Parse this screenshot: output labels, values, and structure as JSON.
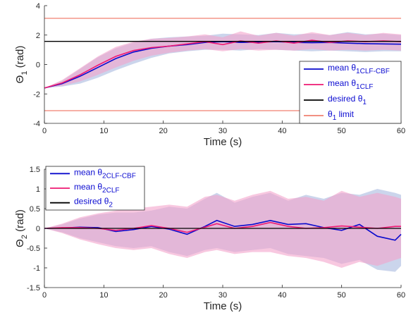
{
  "colors": {
    "clf_cbf": "#0a0acd",
    "clf": "#ee1a73",
    "desired": "#000000",
    "limit": "#f08070",
    "band_clf_cbf": "#b9c7e6",
    "band_clf": "#f4a3cc",
    "legend_text": "#0b0bd1"
  },
  "chart_data": [
    {
      "type": "line",
      "xlabel": "Time (s)",
      "ylabel_main": "Θ",
      "ylabel_sub": "1",
      "ylabel_unit": " (rad)",
      "xlim": [
        0,
        60
      ],
      "ylim": [
        -4,
        4
      ],
      "xticks": [
        "0",
        "10",
        "20",
        "30",
        "40",
        "50",
        "60"
      ],
      "yticks": [
        "-4",
        "-2",
        "0",
        "2",
        "4"
      ],
      "ytick_values": [
        -4,
        -2,
        0,
        2,
        4
      ],
      "legend_position": "lower-right",
      "legend": [
        {
          "prefix": "mean θ",
          "sub": "1CLF-CBF",
          "key": "clf_cbf"
        },
        {
          "prefix": "mean θ",
          "sub": "1CLF",
          "key": "clf"
        },
        {
          "prefix": "desired θ",
          "sub": "1",
          "key": "desired"
        },
        {
          "prefix": "θ",
          "sub": "1",
          "suffix": " limit",
          "key": "limit"
        }
      ],
      "series": [
        {
          "name": "mean θ1CLF-CBF",
          "key": "clf_cbf",
          "x": [
            0,
            3,
            6,
            9,
            12,
            15,
            18,
            21,
            24,
            27,
            30,
            33,
            36,
            39,
            42,
            45,
            48,
            51,
            54,
            57,
            60
          ],
          "y": [
            -1.6,
            -1.3,
            -0.8,
            -0.2,
            0.4,
            0.85,
            1.1,
            1.25,
            1.35,
            1.5,
            1.55,
            1.5,
            1.52,
            1.55,
            1.5,
            1.48,
            1.5,
            1.45,
            1.42,
            1.4,
            1.38
          ]
        },
        {
          "name": "mean θ1CLF",
          "key": "clf",
          "x": [
            0,
            3,
            6,
            9,
            12,
            15,
            18,
            21,
            24,
            27,
            30,
            33,
            36,
            39,
            42,
            45,
            48,
            51,
            54,
            57,
            60
          ],
          "y": [
            -1.6,
            -1.25,
            -0.7,
            -0.05,
            0.55,
            0.95,
            1.15,
            1.25,
            1.4,
            1.55,
            1.35,
            1.6,
            1.45,
            1.6,
            1.45,
            1.65,
            1.5,
            1.6,
            1.55,
            1.6,
            1.55
          ]
        },
        {
          "name": "desired θ1",
          "key": "desired",
          "x": [
            0,
            60
          ],
          "y": [
            1.57,
            1.57
          ]
        },
        {
          "name": "θ1 limit",
          "key": "limit",
          "x": [
            0,
            60
          ],
          "y": [
            3.14,
            3.14
          ]
        },
        {
          "name": "lower limit",
          "key": "limit",
          "x": [
            0,
            60
          ],
          "y": [
            -3.14,
            -3.14
          ]
        }
      ],
      "bands": [
        {
          "key": "band_clf_cbf",
          "x": [
            0,
            3,
            6,
            9,
            12,
            15,
            18,
            21,
            24,
            27,
            30,
            33,
            36,
            39,
            42,
            45,
            48,
            51,
            54,
            57,
            60
          ],
          "lower": [
            -1.6,
            -1.5,
            -1.3,
            -0.9,
            -0.4,
            0.05,
            0.45,
            0.75,
            0.9,
            1.0,
            1.0,
            0.95,
            1.05,
            1.0,
            0.95,
            0.9,
            0.95,
            0.9,
            0.85,
            0.9,
            0.9
          ],
          "upper": [
            -1.6,
            -1.1,
            -0.3,
            0.5,
            1.1,
            1.5,
            1.75,
            1.85,
            1.9,
            1.95,
            2.1,
            2.05,
            2.0,
            2.15,
            2.05,
            2.1,
            2.0,
            2.2,
            2.05,
            2.1,
            2.0
          ]
        },
        {
          "key": "band_clf",
          "x": [
            0,
            3,
            6,
            9,
            12,
            15,
            18,
            21,
            24,
            27,
            30,
            33,
            36,
            39,
            42,
            45,
            48,
            51,
            54,
            57,
            60
          ],
          "lower": [
            -1.6,
            -1.45,
            -1.15,
            -0.7,
            -0.2,
            0.25,
            0.6,
            0.8,
            0.95,
            1.05,
            0.9,
            1.05,
            0.95,
            1.0,
            0.95,
            1.05,
            0.95,
            1.0,
            0.95,
            1.0,
            0.95
          ],
          "upper": [
            -1.6,
            -1.05,
            -0.25,
            0.55,
            1.2,
            1.55,
            1.75,
            1.8,
            1.9,
            2.05,
            1.85,
            2.25,
            1.95,
            2.15,
            1.95,
            2.2,
            2.0,
            2.15,
            2.0,
            2.15,
            2.05
          ]
        }
      ]
    },
    {
      "type": "line",
      "xlabel": "Time (s)",
      "ylabel_main": "Θ",
      "ylabel_sub": "2",
      "ylabel_unit": " (rad)",
      "xlim": [
        0,
        60
      ],
      "ylim": [
        -1.5,
        1.5
      ],
      "xticks": [
        "0",
        "10",
        "20",
        "30",
        "40",
        "50",
        "60"
      ],
      "yticks": [
        "-1.5",
        "-1",
        "-0.5",
        "0",
        "0.5",
        "1",
        "1.5"
      ],
      "ytick_values": [
        -1.5,
        -1,
        -0.5,
        0,
        0.5,
        1,
        1.5
      ],
      "legend_position": "top-left",
      "legend": [
        {
          "prefix": "mean θ",
          "sub": "2CLF-CBF",
          "key": "clf_cbf"
        },
        {
          "prefix": "mean θ",
          "sub": "2CLF",
          "key": "clf"
        },
        {
          "prefix": "desired θ",
          "sub": "2",
          "key": "desired"
        }
      ],
      "series": [
        {
          "name": "mean θ2CLF-CBF",
          "key": "clf_cbf",
          "x": [
            0,
            3,
            6,
            9,
            12,
            15,
            18,
            21,
            24,
            27,
            29,
            32,
            35,
            38,
            41,
            44,
            47,
            50,
            53,
            56,
            59,
            60
          ],
          "y": [
            0,
            0.01,
            0.03,
            0.02,
            -0.08,
            -0.03,
            0.05,
            -0.02,
            -0.15,
            0.05,
            0.2,
            0.05,
            0.1,
            0.2,
            0.1,
            0.12,
            0.02,
            -0.05,
            0.1,
            -0.2,
            -0.3,
            -0.15
          ]
        },
        {
          "name": "mean θ2CLF",
          "key": "clf",
          "x": [
            0,
            3,
            6,
            9,
            12,
            15,
            18,
            21,
            24,
            27,
            29,
            32,
            35,
            38,
            41,
            44,
            47,
            50,
            53,
            56,
            59,
            60
          ],
          "y": [
            0,
            0.02,
            0.02,
            0.0,
            -0.05,
            0.0,
            0.07,
            0.0,
            -0.1,
            0.03,
            0.12,
            0.0,
            0.05,
            0.15,
            0.05,
            0.0,
            0.02,
            0.06,
            0.03,
            0.0,
            0.05,
            0.05
          ]
        },
        {
          "name": "desired θ2",
          "key": "desired",
          "x": [
            0,
            60
          ],
          "y": [
            0,
            0
          ]
        }
      ],
      "bands": [
        {
          "key": "band_clf_cbf",
          "x": [
            0,
            3,
            6,
            9,
            12,
            15,
            18,
            21,
            24,
            27,
            29,
            32,
            35,
            38,
            41,
            44,
            47,
            50,
            53,
            56,
            59,
            60
          ],
          "lower": [
            0,
            -0.1,
            -0.25,
            -0.35,
            -0.45,
            -0.5,
            -0.45,
            -0.6,
            -0.7,
            -0.55,
            -0.5,
            -0.6,
            -0.55,
            -0.5,
            -0.65,
            -0.7,
            -0.75,
            -0.9,
            -0.8,
            -1.05,
            -1.1,
            -0.95
          ],
          "upper": [
            0,
            0.1,
            0.25,
            0.35,
            0.4,
            0.4,
            0.45,
            0.55,
            0.5,
            0.75,
            0.9,
            0.65,
            0.8,
            0.9,
            0.7,
            0.85,
            0.75,
            0.9,
            0.85,
            1.0,
            0.9,
            0.85
          ]
        },
        {
          "key": "band_clf",
          "x": [
            0,
            3,
            6,
            9,
            12,
            15,
            18,
            21,
            24,
            27,
            29,
            32,
            35,
            38,
            41,
            44,
            47,
            50,
            53,
            56,
            59,
            60
          ],
          "lower": [
            0,
            -0.12,
            -0.28,
            -0.4,
            -0.5,
            -0.55,
            -0.5,
            -0.65,
            -0.75,
            -0.6,
            -0.55,
            -0.65,
            -0.6,
            -0.6,
            -0.7,
            -0.75,
            -0.85,
            -1.0,
            -0.85,
            -0.95,
            -0.8,
            -0.75
          ],
          "upper": [
            0,
            0.12,
            0.28,
            0.38,
            0.45,
            0.5,
            0.55,
            0.6,
            0.55,
            0.8,
            0.85,
            0.7,
            0.85,
            0.95,
            0.75,
            0.8,
            0.7,
            0.95,
            0.8,
            0.9,
            0.8,
            0.75
          ]
        }
      ]
    }
  ]
}
